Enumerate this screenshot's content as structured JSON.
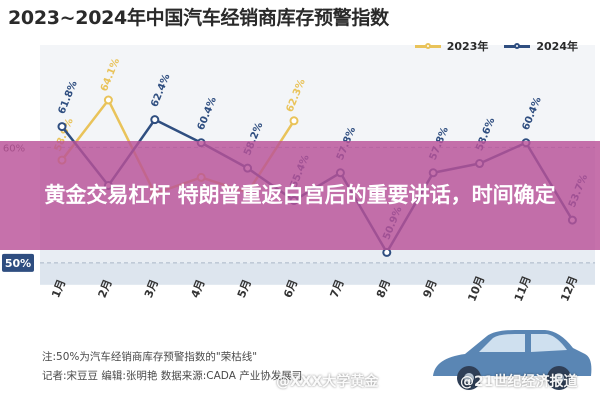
{
  "page": {
    "overlay_headline": "黄金交易杠杆 特朗普重返白宫后的重要讲话，时间确定",
    "note_line1": "注:50%为汽车经销商库存预警指数的\"荣枯线\"",
    "note_line2": "记者:宋豆豆  编辑:张明艳  数据来源:CADA 产业协发展司",
    "watermark_left": "@XXX大学黄金",
    "watermark_right": "@21世纪经济报道"
  },
  "chart_data": {
    "type": "line",
    "title": "2023~2024年中国汽车经销商库存预警指数",
    "categories": [
      "1月",
      "2月",
      "3月",
      "4月",
      "5月",
      "6月",
      "7月",
      "8月",
      "9月",
      "10月",
      "11月",
      "12月"
    ],
    "series": [
      {
        "name": "2023年",
        "color": "#e9c35a",
        "values": [
          58.9,
          64.1,
          56.0,
          57.4,
          56.1,
          62.3,
          null,
          null,
          null,
          null,
          null,
          null
        ],
        "labels": [
          "58.9%",
          "64.1%",
          "",
          "",
          "",
          "62.3%",
          "",
          "",
          "",
          "",
          "",
          ""
        ]
      },
      {
        "name": "2024年",
        "color": "#2f4e80",
        "values": [
          61.8,
          56.7,
          62.4,
          60.4,
          58.2,
          55.4,
          57.8,
          50.9,
          57.8,
          58.6,
          60.4,
          53.7
        ],
        "labels": [
          "61.8%",
          "",
          "62.4%",
          "60.4%",
          "58.2%",
          "55.4%",
          "57.8%",
          "50.9%",
          "57.8%",
          "58.6%",
          "60.4%",
          "53.7%"
        ]
      }
    ],
    "reference_lines": [
      {
        "value": 60,
        "label": "60%"
      },
      {
        "value": 50,
        "label": "50%"
      }
    ],
    "ylim": [
      46,
      68
    ],
    "legend_position": "top-right"
  }
}
